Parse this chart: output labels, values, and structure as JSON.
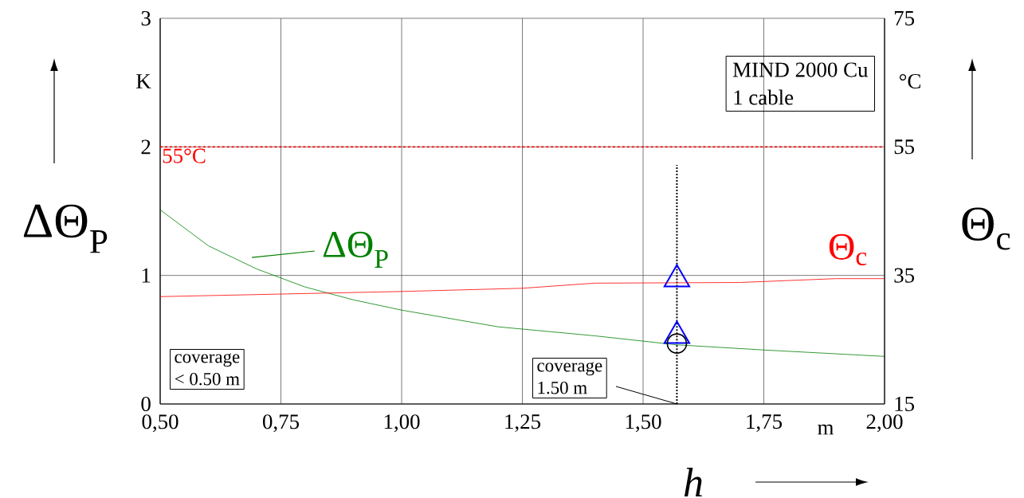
{
  "chart_data": {
    "type": "line",
    "xlabel": "h",
    "ylabel": "ΔΘ$_{P}$",
    "y2label": "Θ$_{c}$",
    "xlim": [
      0.5,
      2.0
    ],
    "xticks": [
      {
        "value": 0.5,
        "label": "0,50"
      },
      {
        "value": 0.75,
        "label": "0,75"
      },
      {
        "value": 1.0,
        "label": "1,00"
      },
      {
        "value": 1.25,
        "label": "1,25"
      },
      {
        "value": 1.5,
        "label": "1,50"
      },
      {
        "value": 1.75,
        "label": "1,75"
      },
      {
        "value": 2.0,
        "label": "2,00"
      }
    ],
    "ylim": [
      0,
      3
    ],
    "yticks": [
      0,
      1,
      2,
      3
    ],
    "y2lim": [
      15,
      75
    ],
    "y2ticks": [
      15,
      35,
      55,
      75
    ],
    "grid": true,
    "series": [
      {
        "name": "ΔΘ$_{P}$",
        "color": "#008000",
        "marker": "none",
        "x": [
          0.5,
          0.6,
          0.7,
          0.8,
          0.9,
          1.0,
          1.2,
          1.4,
          1.57,
          1.75,
          2.0
        ],
        "values": [
          1.51,
          1.23,
          1.05,
          0.91,
          0.81,
          0.73,
          0.6,
          0.53,
          0.46,
          0.42,
          0.37
        ]
      },
      {
        "name": "Θ$_{c}$",
        "color": "#ff0000",
        "marker": "none",
        "axis": "y2",
        "x": [
          0.5,
          1.0,
          1.25,
          1.4,
          1.7,
          1.9,
          2.0
        ],
        "values": [
          31.7,
          32.5,
          33.0,
          33.8,
          33.9,
          34.5,
          34.5
        ]
      },
      {
        "type": "scatter",
        "color": "#0000ff",
        "marker": "triangle",
        "x": [
          1.57,
          1.57
        ],
        "values": [
          0.97,
          0.53
        ]
      },
      {
        "type": "scatter",
        "color": "#000000",
        "marker": "circle",
        "x": [
          1.57
        ],
        "values": [
          0.47
        ]
      }
    ],
    "ref_lines": [
      {
        "axis": "y2",
        "value": 55,
        "label": "55°C",
        "color": "#ff0000",
        "line_style": "dashed"
      },
      {
        "axis": "x",
        "value": 1.57,
        "color": "#000000",
        "line_style": "dotted"
      }
    ],
    "annotations": [
      "MIND 2000 Cu",
      "1 cable",
      "coverage",
      "< 0.50 m",
      {
        "text": "coverage",
        "x": 1.57,
        "y": 0
      },
      "1.50 m",
      "K",
      "°C",
      "m"
    ]
  }
}
